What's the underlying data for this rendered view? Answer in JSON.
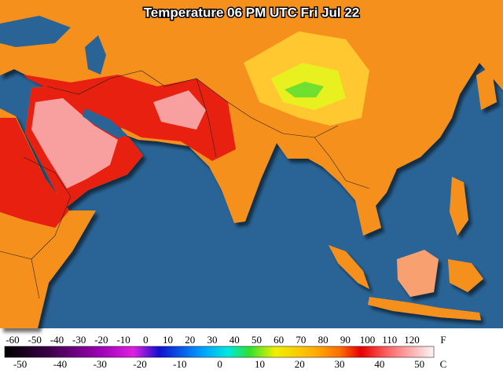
{
  "title": "Temperature 06 PM UTC Fri Jul 22",
  "legend": {
    "fahrenheit": {
      "unit": "F",
      "ticks": [
        -60,
        -50,
        -40,
        -30,
        -20,
        -10,
        0,
        10,
        20,
        30,
        40,
        50,
        60,
        70,
        80,
        90,
        100,
        110,
        120
      ]
    },
    "celsius": {
      "unit": "C",
      "ticks": [
        -50,
        -40,
        -30,
        -20,
        -10,
        0,
        10,
        20,
        30,
        40,
        50
      ]
    }
  }
}
